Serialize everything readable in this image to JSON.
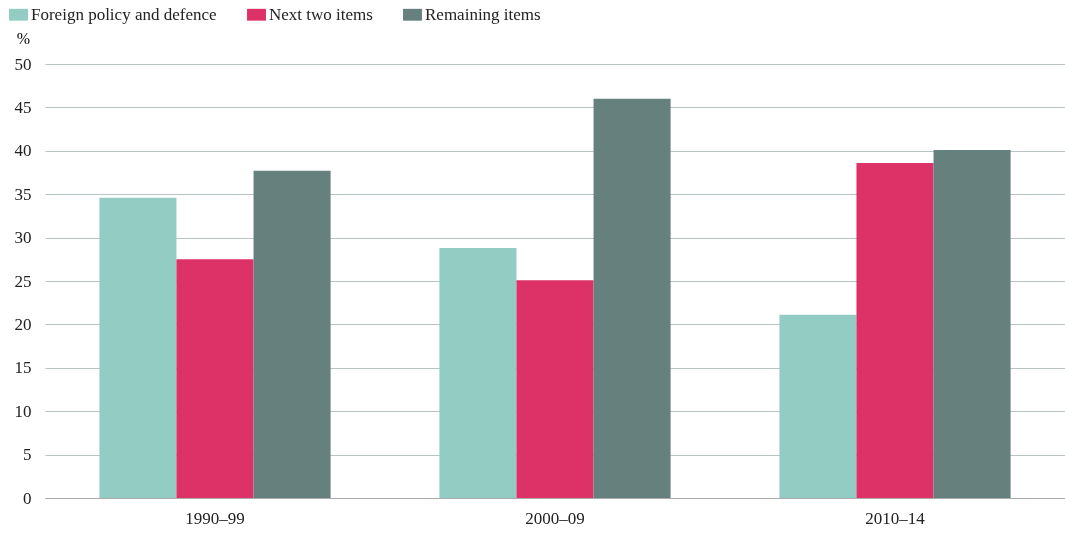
{
  "chart_data": {
    "type": "bar",
    "ylabel": "%",
    "categories": [
      "1990–99",
      "2000–09",
      "2010–14"
    ],
    "series": [
      {
        "name": "Foreign policy and defence",
        "color": "#92ccc2",
        "values": [
          34.6,
          28.8,
          21.1
        ]
      },
      {
        "name": "Next two items",
        "color": "#dc3267",
        "values": [
          27.5,
          25.1,
          38.6
        ]
      },
      {
        "name": "Remaining items",
        "color": "#66807e",
        "values": [
          37.7,
          46.0,
          40.1
        ]
      }
    ],
    "ylim": [
      0,
      50
    ],
    "yticks": [
      0,
      5,
      10,
      15,
      20,
      25,
      30,
      35,
      40,
      45,
      50
    ],
    "grid": "y",
    "legend": "top left"
  }
}
